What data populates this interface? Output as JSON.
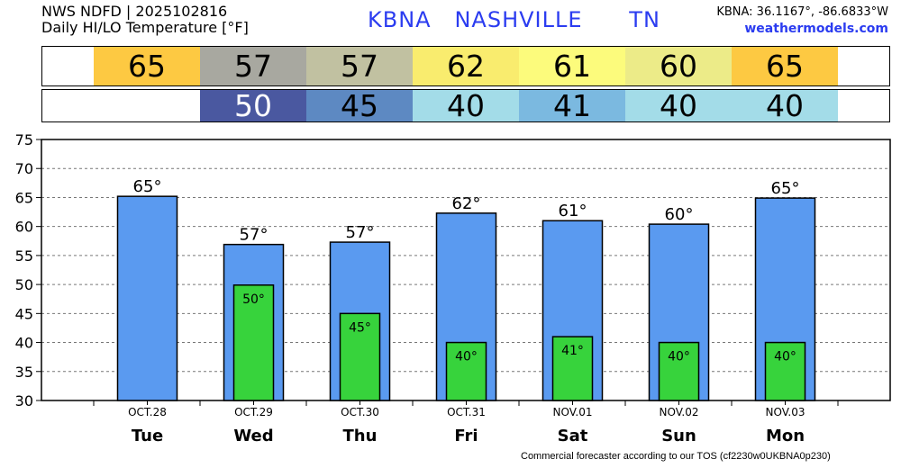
{
  "header": {
    "source": "NWS NDFD | 2025102816",
    "subtitle": "Daily HI/LO Temperature [°F]",
    "station": "KBNA   NASHVILLE      TN",
    "coords": "KBNA: 36.1167°, -86.6833°W",
    "site": "weathermodels.com"
  },
  "hi_strip": [
    {
      "text": "65",
      "color": "#fdc942"
    },
    {
      "text": "57",
      "color": "#a8a8a0"
    },
    {
      "text": "57",
      "color": "#c1c1a1"
    },
    {
      "text": "62",
      "color": "#f9ec6e"
    },
    {
      "text": "61",
      "color": "#fcfb7c"
    },
    {
      "text": "60",
      "color": "#eceb88"
    },
    {
      "text": "65",
      "color": "#fdc942"
    }
  ],
  "lo_strip": [
    {
      "text": "",
      "color": "#ffffff"
    },
    {
      "text": "50",
      "color": "#4a58a0",
      "text_color": "#ffffff"
    },
    {
      "text": "45",
      "color": "#5d89c2"
    },
    {
      "text": "40",
      "color": "#a3dce8"
    },
    {
      "text": "41",
      "color": "#7bb9e0"
    },
    {
      "text": "40",
      "color": "#a3dce8"
    },
    {
      "text": "40",
      "color": "#a3dce8"
    }
  ],
  "footer": "Commercial forecaster according to our TOS (cf2230w0UKBNA0p230)",
  "chart_data": {
    "type": "bar",
    "categories": [
      "Tue",
      "Wed",
      "Thu",
      "Fri",
      "Sat",
      "Sun",
      "Mon"
    ],
    "dates": [
      "OCT.28",
      "OCT.29",
      "OCT.30",
      "OCT.31",
      "NOV.01",
      "NOV.02",
      "NOV.03"
    ],
    "series": [
      {
        "values": [
          65.2,
          56.9,
          57.3,
          62.3,
          61.0,
          60.4,
          64.9
        ],
        "labels": [
          "65°",
          "57°",
          "57°",
          "62°",
          "61°",
          "60°",
          "65°"
        ],
        "color": "#5a9af0"
      },
      {
        "values": [
          null,
          49.9,
          45.0,
          40.0,
          41.0,
          40.0,
          40.0
        ],
        "labels": [
          "",
          "50°",
          "45°",
          "40°",
          "41°",
          "40°",
          "40°"
        ],
        "color": "#37d33c"
      }
    ],
    "ylim": [
      30,
      75
    ],
    "yticks": [
      30,
      35,
      40,
      45,
      50,
      55,
      60,
      65,
      70,
      75
    ],
    "grid": true
  }
}
